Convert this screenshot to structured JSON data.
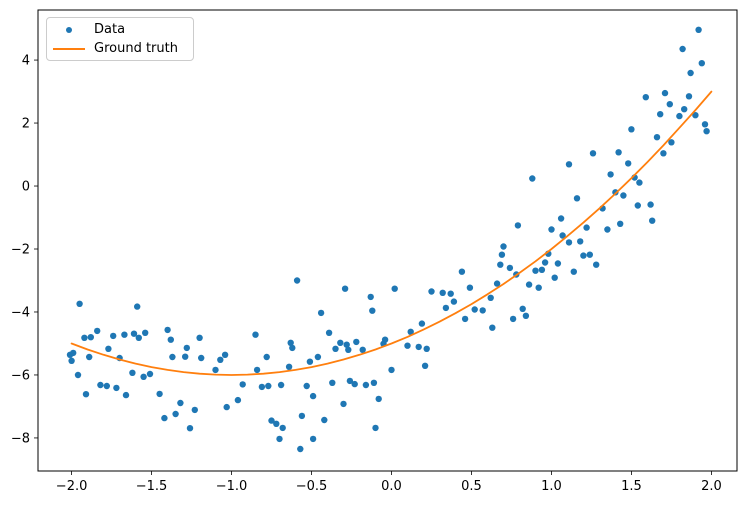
{
  "chart_data": {
    "type": "scatter",
    "title": "",
    "xlabel": "",
    "ylabel": "",
    "grid": false,
    "background_color": "#ffffff",
    "spine_color": "#000000",
    "tick_label_color": "#000000",
    "xlim": [
      -2.21,
      2.16
    ],
    "ylim": [
      -9.05,
      5.59
    ],
    "x_ticks": {
      "values": [
        -2.0,
        -1.5,
        -1.0,
        -0.5,
        0.0,
        0.5,
        1.0,
        1.5,
        2.0
      ],
      "labels": [
        "−2.0",
        "−1.5",
        "−1.0",
        "−0.5",
        "0.0",
        "0.5",
        "1.0",
        "1.5",
        "2.0"
      ]
    },
    "y_ticks": {
      "values": [
        -8,
        -6,
        -4,
        -2,
        0,
        2,
        4
      ],
      "labels": [
        "−8",
        "−6",
        "−4",
        "−2",
        "0",
        "2",
        "4"
      ]
    },
    "legend": {
      "position": "upper left",
      "entries": [
        {
          "label": "Data",
          "type": "marker",
          "color": "#1f77b4"
        },
        {
          "label": "Ground truth",
          "type": "line",
          "color": "#ff7f0e"
        }
      ]
    },
    "series": [
      {
        "name": "Data",
        "type": "scatter",
        "color": "#1f77b4",
        "marker": "circle",
        "marker_radius": 3.2,
        "points": [
          [
            -2.01,
            -5.36
          ],
          [
            -2.0,
            -5.55
          ],
          [
            -1.99,
            -5.3
          ],
          [
            -1.96,
            -6.0
          ],
          [
            -1.95,
            -3.74
          ],
          [
            -1.92,
            -4.82
          ],
          [
            -1.91,
            -6.61
          ],
          [
            -1.89,
            -5.43
          ],
          [
            -1.88,
            -4.8
          ],
          [
            -1.84,
            -4.6
          ],
          [
            -1.82,
            -6.32
          ],
          [
            -1.78,
            -6.35
          ],
          [
            -1.77,
            -5.17
          ],
          [
            -1.74,
            -4.76
          ],
          [
            -1.72,
            -6.41
          ],
          [
            -1.7,
            -5.46
          ],
          [
            -1.67,
            -4.72
          ],
          [
            -1.66,
            -6.64
          ],
          [
            -1.62,
            -5.93
          ],
          [
            -1.61,
            -4.69
          ],
          [
            -1.59,
            -3.83
          ],
          [
            -1.58,
            -4.82
          ],
          [
            -1.55,
            -6.06
          ],
          [
            -1.54,
            -4.66
          ],
          [
            -1.51,
            -5.97
          ],
          [
            -1.45,
            -6.6
          ],
          [
            -1.42,
            -7.37
          ],
          [
            -1.4,
            -4.57
          ],
          [
            -1.38,
            -4.88
          ],
          [
            -1.37,
            -5.43
          ],
          [
            -1.35,
            -7.24
          ],
          [
            -1.32,
            -6.89
          ],
          [
            -1.29,
            -5.42
          ],
          [
            -1.28,
            -5.14
          ],
          [
            -1.26,
            -7.69
          ],
          [
            -1.23,
            -7.11
          ],
          [
            -1.2,
            -4.82
          ],
          [
            -1.19,
            -5.46
          ],
          [
            -1.1,
            -5.84
          ],
          [
            -1.07,
            -5.52
          ],
          [
            -1.04,
            -5.36
          ],
          [
            -1.03,
            -7.02
          ],
          [
            -0.96,
            -6.8
          ],
          [
            -0.93,
            -6.3
          ],
          [
            -0.85,
            -4.72
          ],
          [
            -0.84,
            -5.84
          ],
          [
            -0.81,
            -6.38
          ],
          [
            -0.78,
            -5.43
          ],
          [
            -0.77,
            -6.35
          ],
          [
            -0.75,
            -7.45
          ],
          [
            -0.72,
            -7.55
          ],
          [
            -0.7,
            -8.03
          ],
          [
            -0.69,
            -6.32
          ],
          [
            -0.68,
            -7.68
          ],
          [
            -0.64,
            -5.74
          ],
          [
            -0.63,
            -4.98
          ],
          [
            -0.62,
            -5.14
          ],
          [
            -0.59,
            -3.0
          ],
          [
            -0.57,
            -8.35
          ],
          [
            -0.56,
            -7.3
          ],
          [
            -0.53,
            -6.35
          ],
          [
            -0.51,
            -5.58
          ],
          [
            -0.49,
            -8.03
          ],
          [
            -0.49,
            -6.67
          ],
          [
            -0.46,
            -5.43
          ],
          [
            -0.44,
            -4.03
          ],
          [
            -0.42,
            -7.43
          ],
          [
            -0.39,
            -4.66
          ],
          [
            -0.37,
            -6.25
          ],
          [
            -0.35,
            -5.17
          ],
          [
            -0.32,
            -4.98
          ],
          [
            -0.3,
            -6.92
          ],
          [
            -0.29,
            -3.26
          ],
          [
            -0.28,
            -5.04
          ],
          [
            -0.27,
            -5.2
          ],
          [
            -0.26,
            -6.19
          ],
          [
            -0.23,
            -6.29
          ],
          [
            -0.22,
            -4.95
          ],
          [
            -0.18,
            -5.2
          ],
          [
            -0.16,
            -6.32
          ],
          [
            -0.13,
            -3.52
          ],
          [
            -0.12,
            -3.96
          ],
          [
            -0.11,
            -6.25
          ],
          [
            -0.1,
            -7.68
          ],
          [
            -0.08,
            -6.76
          ],
          [
            -0.05,
            -5.01
          ],
          [
            -0.04,
            -4.88
          ],
          [
            0.0,
            -5.84
          ],
          [
            0.02,
            -3.26
          ],
          [
            0.1,
            -5.07
          ],
          [
            0.12,
            -4.63
          ],
          [
            0.17,
            -5.11
          ],
          [
            0.19,
            -4.37
          ],
          [
            0.21,
            -5.71
          ],
          [
            0.22,
            -5.17
          ],
          [
            0.25,
            -3.35
          ],
          [
            0.32,
            -3.39
          ],
          [
            0.34,
            -3.87
          ],
          [
            0.37,
            -3.42
          ],
          [
            0.39,
            -3.67
          ],
          [
            0.44,
            -2.72
          ],
          [
            0.46,
            -4.22
          ],
          [
            0.49,
            -3.23
          ],
          [
            0.52,
            -3.92
          ],
          [
            0.57,
            -3.95
          ],
          [
            0.62,
            -3.55
          ],
          [
            0.63,
            -4.5
          ],
          [
            0.66,
            -3.1
          ],
          [
            0.68,
            -2.5
          ],
          [
            0.69,
            -2.18
          ],
          [
            0.7,
            -1.92
          ],
          [
            0.74,
            -2.6
          ],
          [
            0.76,
            -4.22
          ],
          [
            0.78,
            -2.81
          ],
          [
            0.79,
            -1.25
          ],
          [
            0.82,
            -3.9
          ],
          [
            0.84,
            -4.12
          ],
          [
            0.86,
            -3.13
          ],
          [
            0.88,
            0.24
          ],
          [
            0.9,
            -2.69
          ],
          [
            0.92,
            -3.23
          ],
          [
            0.94,
            -2.66
          ],
          [
            0.96,
            -2.43
          ],
          [
            0.98,
            -2.15
          ],
          [
            1.0,
            -1.38
          ],
          [
            1.02,
            -2.91
          ],
          [
            1.04,
            -2.46
          ],
          [
            1.06,
            -1.03
          ],
          [
            1.07,
            -1.57
          ],
          [
            1.11,
            -1.79
          ],
          [
            1.11,
            0.69
          ],
          [
            1.14,
            -2.72
          ],
          [
            1.16,
            -0.39
          ],
          [
            1.18,
            -1.76
          ],
          [
            1.2,
            -2.21
          ],
          [
            1.22,
            -1.32
          ],
          [
            1.24,
            -2.18
          ],
          [
            1.26,
            1.04
          ],
          [
            1.28,
            -2.5
          ],
          [
            1.32,
            -0.71
          ],
          [
            1.35,
            -1.38
          ],
          [
            1.37,
            0.37
          ],
          [
            1.4,
            -0.2
          ],
          [
            1.42,
            1.07
          ],
          [
            1.43,
            -1.2
          ],
          [
            1.45,
            -0.3
          ],
          [
            1.48,
            0.72
          ],
          [
            1.5,
            1.8
          ],
          [
            1.52,
            0.27
          ],
          [
            1.54,
            -0.62
          ],
          [
            1.55,
            0.11
          ],
          [
            1.59,
            2.82
          ],
          [
            1.62,
            -0.59
          ],
          [
            1.63,
            -1.1
          ],
          [
            1.66,
            1.55
          ],
          [
            1.68,
            2.28
          ],
          [
            1.7,
            1.04
          ],
          [
            1.71,
            2.95
          ],
          [
            1.74,
            2.6
          ],
          [
            1.75,
            1.39
          ],
          [
            1.8,
            2.22
          ],
          [
            1.82,
            4.35
          ],
          [
            1.83,
            2.44
          ],
          [
            1.86,
            2.85
          ],
          [
            1.87,
            3.59
          ],
          [
            1.9,
            2.25
          ],
          [
            1.92,
            4.96
          ],
          [
            1.94,
            3.9
          ],
          [
            1.96,
            1.96
          ],
          [
            1.97,
            1.74
          ]
        ]
      },
      {
        "name": "Ground truth",
        "type": "line",
        "color": "#ff7f0e",
        "line_width": 1.8,
        "points": [
          [
            -2.0,
            -5.0
          ],
          [
            -1.9,
            -5.19
          ],
          [
            -1.8,
            -5.36
          ],
          [
            -1.7,
            -5.51
          ],
          [
            -1.6,
            -5.64
          ],
          [
            -1.5,
            -5.75
          ],
          [
            -1.4,
            -5.84
          ],
          [
            -1.3,
            -5.91
          ],
          [
            -1.2,
            -5.96
          ],
          [
            -1.1,
            -5.99
          ],
          [
            -1.0,
            -6.0
          ],
          [
            -0.9,
            -5.99
          ],
          [
            -0.8,
            -5.96
          ],
          [
            -0.7,
            -5.91
          ],
          [
            -0.6,
            -5.84
          ],
          [
            -0.5,
            -5.75
          ],
          [
            -0.4,
            -5.64
          ],
          [
            -0.3,
            -5.51
          ],
          [
            -0.2,
            -5.36
          ],
          [
            -0.1,
            -5.19
          ],
          [
            0.0,
            -5.0
          ],
          [
            0.1,
            -4.79
          ],
          [
            0.2,
            -4.56
          ],
          [
            0.3,
            -4.31
          ],
          [
            0.4,
            -4.04
          ],
          [
            0.5,
            -3.75
          ],
          [
            0.6,
            -3.44
          ],
          [
            0.7,
            -3.11
          ],
          [
            0.8,
            -2.76
          ],
          [
            0.9,
            -2.39
          ],
          [
            1.0,
            -2.0
          ],
          [
            1.1,
            -1.59
          ],
          [
            1.2,
            -1.16
          ],
          [
            1.3,
            -0.71
          ],
          [
            1.4,
            -0.24
          ],
          [
            1.5,
            0.25
          ],
          [
            1.6,
            0.76
          ],
          [
            1.7,
            1.29
          ],
          [
            1.8,
            1.85
          ],
          [
            1.9,
            2.41
          ],
          [
            2.0,
            3.0
          ]
        ]
      }
    ]
  }
}
